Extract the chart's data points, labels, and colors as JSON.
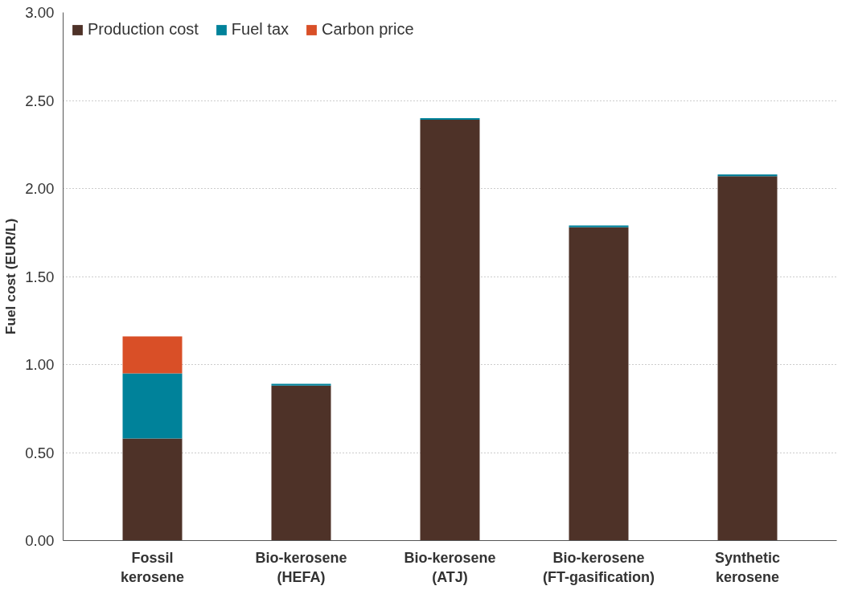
{
  "chart_data": {
    "type": "bar",
    "stacked": true,
    "ylabel": "Fuel cost (EUR/L)",
    "categories": [
      "Fossil\nkerosene",
      "Bio-kerosene\n(HEFA)",
      "Bio-kerosene\n(ATJ)",
      "Bio-kerosene\n(FT-gasification)",
      "Synthetic\nkerosene"
    ],
    "series": [
      {
        "name": "Production cost",
        "color": "#4e3228",
        "values": [
          0.58,
          0.88,
          2.39,
          1.78,
          2.07
        ]
      },
      {
        "name": "Fuel tax",
        "color": "#00829a",
        "values": [
          0.37,
          0.01,
          0.01,
          0.01,
          0.01
        ]
      },
      {
        "name": "Carbon price",
        "color": "#d94f27",
        "values": [
          0.21,
          null,
          null,
          null,
          null
        ]
      }
    ],
    "ylim": [
      0,
      3
    ],
    "yticks": [
      {
        "value": 0,
        "label": "0.00"
      },
      {
        "value": 0.5,
        "label": "0.50"
      },
      {
        "value": 1,
        "label": "1.00"
      },
      {
        "value": 1.5,
        "label": "1.50"
      },
      {
        "value": 2,
        "label": "2.00"
      },
      {
        "value": 2.5,
        "label": "2.50"
      },
      {
        "value": 3,
        "label": "3.00"
      }
    ],
    "grid": "y",
    "legend": "top left"
  }
}
